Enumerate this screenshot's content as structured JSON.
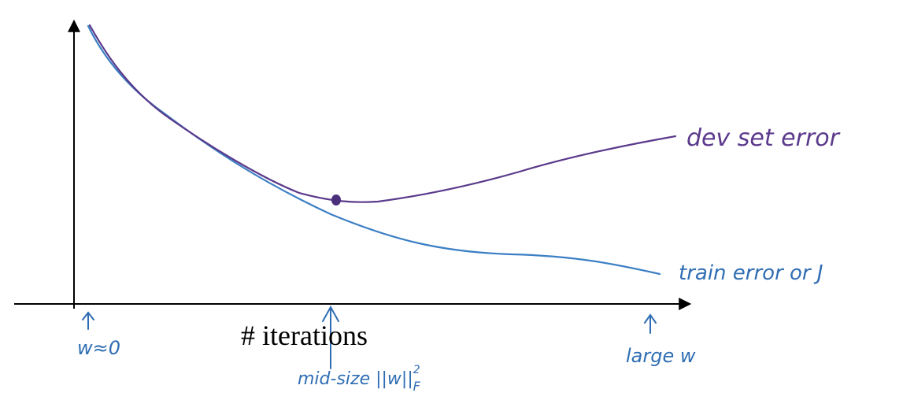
{
  "colors": {
    "axis": "#000000",
    "dev_curve": "#5b3a8c",
    "train_curve": "#3b7fc4",
    "annotation_blue": "#2f6db3"
  },
  "labels": {
    "x_axis": "# iterations",
    "dev_curve": "dev set error",
    "train_curve": "train error or J",
    "left_marker": "w≈0",
    "mid_marker": "mid-size ||w||",
    "mid_marker_sup": "2",
    "mid_marker_sub": "F",
    "right_marker": "large w"
  },
  "icons": {
    "markers": "up-arrow-icon",
    "axes": "arrowhead-icon",
    "minimum": "dot-icon"
  }
}
